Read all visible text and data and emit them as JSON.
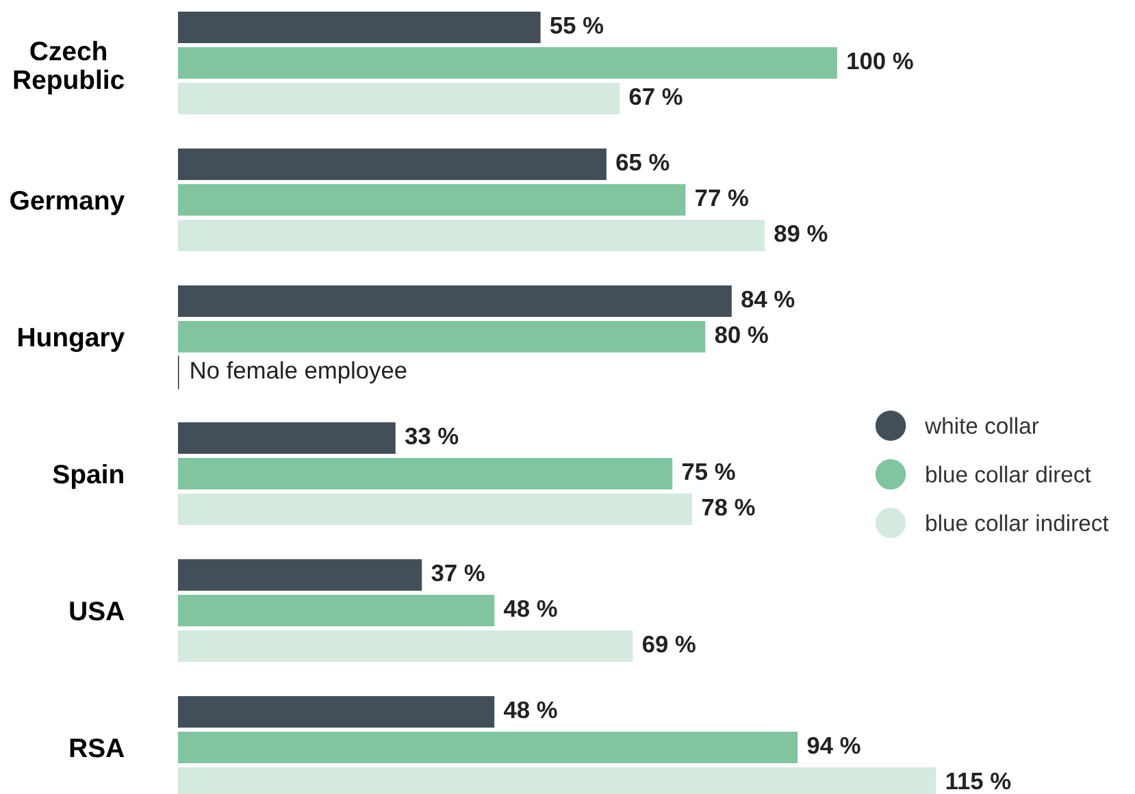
{
  "chart_data": {
    "type": "bar",
    "orientation": "horizontal",
    "categories": [
      "Czech\nRepublic",
      "Germany",
      "Hungary",
      "Spain",
      "USA",
      "RSA"
    ],
    "series": [
      {
        "name": "white collar",
        "color": "#434f58",
        "values": [
          55,
          65,
          84,
          33,
          37,
          48
        ],
        "value_labels": [
          "55 %",
          "65 %",
          "84 %",
          "33 %",
          "37 %",
          "48 %"
        ]
      },
      {
        "name": "blue collar direct",
        "color": "#80c5a0",
        "values": [
          100,
          77,
          80,
          75,
          48,
          94
        ],
        "value_labels": [
          "100 %",
          "77 %",
          "80 %",
          "75 %",
          "48 %",
          "94 %"
        ]
      },
      {
        "name": "blue collar indirect",
        "color": "#d4eadf",
        "values": [
          67,
          89,
          null,
          78,
          69,
          115
        ],
        "value_labels": [
          "67 %",
          "89 %",
          null,
          "78 %",
          "69 %",
          "115 %"
        ]
      }
    ],
    "annotations": [
      {
        "text": "No female employee",
        "x": 0,
        "y": "Hungary"
      }
    ],
    "legend": "right",
    "marker": "circle",
    "grid": false
  }
}
